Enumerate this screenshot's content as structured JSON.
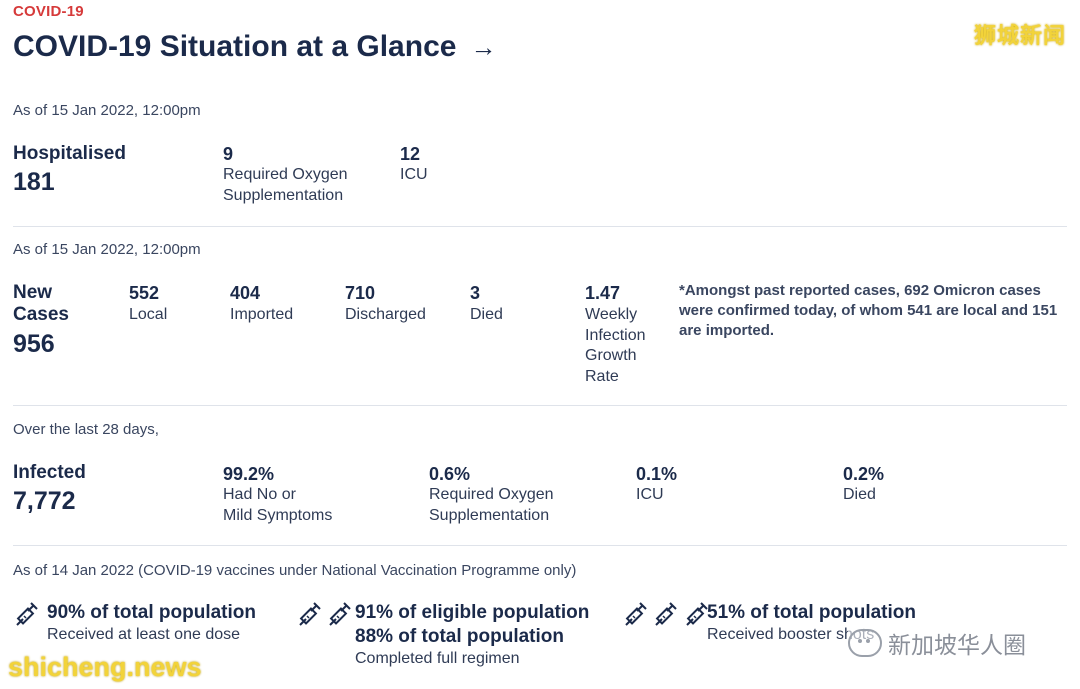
{
  "header": {
    "kicker": "COVID-19",
    "title": "COVID-19 Situation at a Glance",
    "arrow": "→"
  },
  "watermarks": {
    "top_right": "狮城新闻",
    "bottom_left": "shicheng.news",
    "wechat": "新加坡华人圈"
  },
  "hospital": {
    "asof": "As of 15 Jan 2022, 12:00pm",
    "label": "Hospitalised",
    "total": "181",
    "oxygen_value": "9",
    "oxygen_label_1": "Required Oxygen",
    "oxygen_label_2": "Supplementation",
    "icu_value": "12",
    "icu_label": "ICU"
  },
  "cases": {
    "asof": "As of 15 Jan 2022, 12:00pm",
    "label_1": "New",
    "label_2": "Cases",
    "total": "956",
    "local_value": "552",
    "local_label": "Local",
    "imported_value": "404",
    "imported_label": "Imported",
    "discharged_value": "710",
    "discharged_label": "Discharged",
    "died_value": "3",
    "died_label": "Died",
    "growth_value": "1.47",
    "growth_label_1": "Weekly",
    "growth_label_2": "Infection",
    "growth_label_3": "Growth",
    "growth_label_4": "Rate",
    "note": "*Amongst past reported cases, 692 Omicron cases were confirmed today, of whom 541 are local and 151 are imported."
  },
  "infected": {
    "period": "Over the last 28 days,",
    "label": "Infected",
    "total": "7,772",
    "mild_value": "99.2%",
    "mild_label_1": "Had No or",
    "mild_label_2": "Mild Symptoms",
    "oxygen_value": "0.6%",
    "oxygen_label_1": "Required Oxygen",
    "oxygen_label_2": "Supplementation",
    "icu_value": "0.1%",
    "icu_label": "ICU",
    "died_value": "0.2%",
    "died_label": "Died"
  },
  "vaccination": {
    "asof": "As of 14 Jan 2022 (COVID-19 vaccines under National Vaccination Programme only)",
    "one_dose_title": "90% of total population",
    "one_dose_sub": "Received at least one dose",
    "full_title_1": "91% of eligible population",
    "full_title_2": "88% of total population",
    "full_sub": "Completed full regimen",
    "booster_title": "51% of total population",
    "booster_sub": "Received booster shots",
    "icon_name": "syringe-icon"
  }
}
